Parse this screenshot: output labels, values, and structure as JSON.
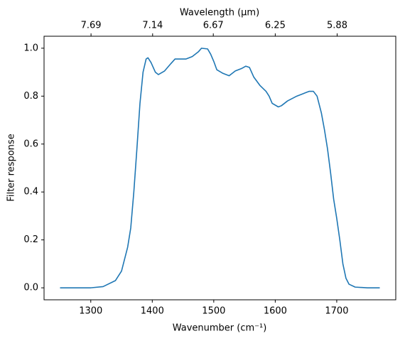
{
  "chart_data": {
    "type": "line",
    "x2_title": "Wavelength (μm)",
    "xlabel": "Wavenumber (cm⁻¹)",
    "ylabel": "Filter response",
    "x": [
      1250,
      1300,
      1320,
      1340,
      1350,
      1360,
      1365,
      1370,
      1375,
      1380,
      1385,
      1390,
      1393,
      1398,
      1405,
      1410,
      1420,
      1430,
      1437,
      1445,
      1455,
      1465,
      1470,
      1475,
      1480,
      1490,
      1495,
      1500,
      1505,
      1515,
      1525,
      1535,
      1545,
      1552,
      1558,
      1565,
      1575,
      1585,
      1590,
      1595,
      1605,
      1610,
      1620,
      1635,
      1645,
      1650,
      1655,
      1662,
      1668,
      1675,
      1680,
      1685,
      1690,
      1695,
      1700,
      1705,
      1710,
      1715,
      1720,
      1730,
      1750,
      1770
    ],
    "series": [
      {
        "color": "#1f77b4",
        "values": [
          0,
          0,
          0.005,
          0.03,
          0.07,
          0.17,
          0.25,
          0.4,
          0.58,
          0.77,
          0.9,
          0.955,
          0.96,
          0.94,
          0.9,
          0.89,
          0.905,
          0.935,
          0.955,
          0.955,
          0.955,
          0.965,
          0.975,
          0.985,
          1.0,
          0.997,
          0.975,
          0.945,
          0.91,
          0.895,
          0.885,
          0.905,
          0.915,
          0.925,
          0.92,
          0.88,
          0.845,
          0.82,
          0.8,
          0.77,
          0.755,
          0.76,
          0.78,
          0.8,
          0.81,
          0.815,
          0.82,
          0.82,
          0.8,
          0.73,
          0.66,
          0.58,
          0.48,
          0.37,
          0.29,
          0.2,
          0.1,
          0.04,
          0.015,
          0.003,
          0,
          0
        ]
      }
    ],
    "xlim": [
      1224,
      1796
    ],
    "ylim": [
      -0.05,
      1.05
    ],
    "xticks": [
      1300,
      1400,
      1500,
      1600,
      1700
    ],
    "yticks": [
      {
        "value": 0,
        "label": "0.0"
      },
      0.2,
      0.4,
      0.6,
      0.8,
      {
        "value": 1,
        "label": "1.0"
      }
    ],
    "x2ticks": [
      7.69,
      7.14,
      6.67,
      6.25,
      5.88
    ],
    "x2_scale": "reciprocal",
    "grid": false
  }
}
